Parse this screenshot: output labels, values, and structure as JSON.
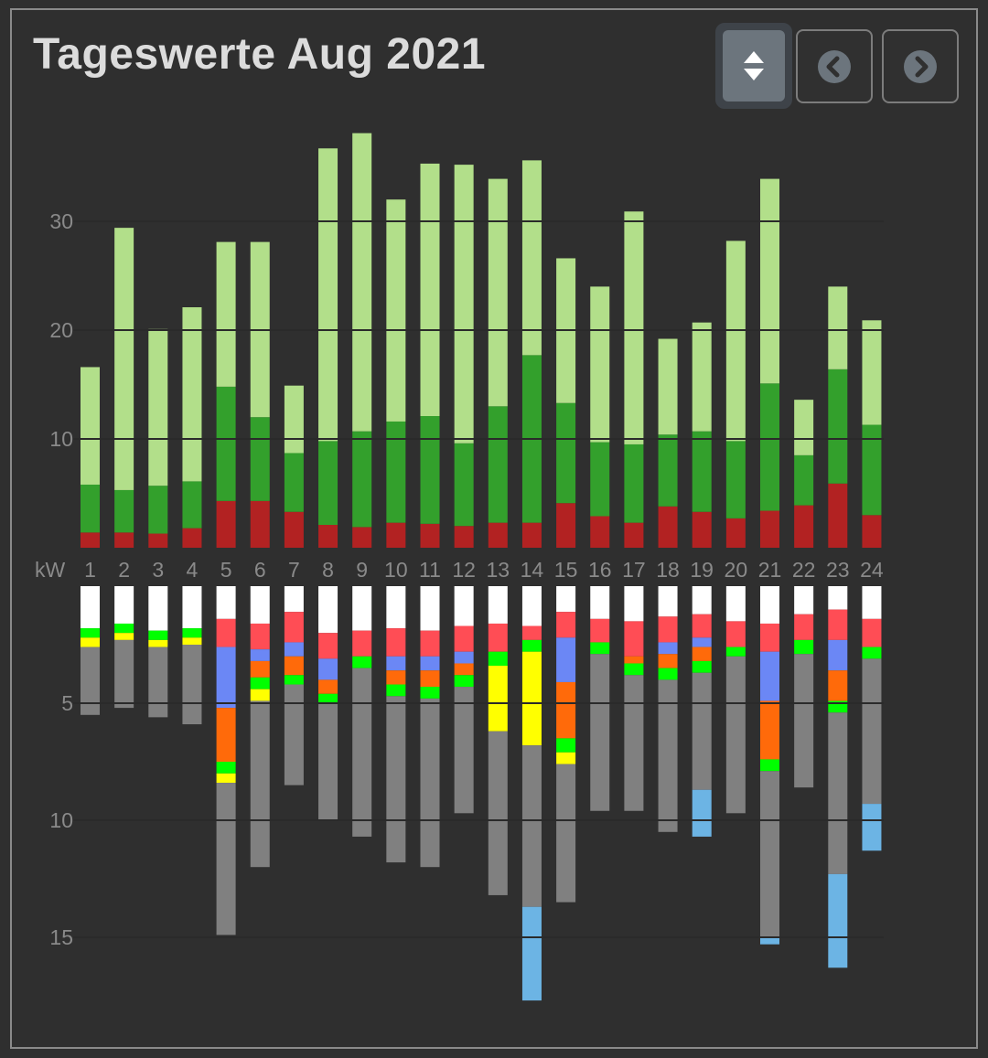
{
  "header": {
    "title": "Tageswerte Aug 2021"
  },
  "buttons": [
    {
      "name": "sort-toggle",
      "icon": "sort-up-down-icon"
    },
    {
      "name": "previous",
      "icon": "chevron-left-circle-icon"
    },
    {
      "name": "next",
      "icon": "chevron-right-circle-icon"
    }
  ],
  "chart_data": {
    "type": "bar",
    "unit_label": "kW",
    "categories": [
      "1",
      "2",
      "3",
      "4",
      "5",
      "6",
      "7",
      "8",
      "9",
      "10",
      "11",
      "12",
      "13",
      "14",
      "15",
      "16",
      "17",
      "18",
      "19",
      "20",
      "21",
      "22",
      "23",
      "24"
    ],
    "upper": {
      "ticks": [
        10,
        20,
        30
      ],
      "ylim": [
        0,
        38
      ],
      "colors": [
        "#b22222",
        "#33a02c",
        "#b2df8a"
      ],
      "segments": [
        [
          1.4,
          4.4,
          10.8
        ],
        [
          1.4,
          3.9,
          24.1
        ],
        [
          1.3,
          4.4,
          14.4
        ],
        [
          1.8,
          4.3,
          16.0
        ],
        [
          4.3,
          10.5,
          13.3
        ],
        [
          4.3,
          7.7,
          16.1
        ],
        [
          3.3,
          5.4,
          6.2
        ],
        [
          2.1,
          7.7,
          26.9
        ],
        [
          1.9,
          8.8,
          27.4
        ],
        [
          2.3,
          9.3,
          20.4
        ],
        [
          2.2,
          9.9,
          23.2
        ],
        [
          2.0,
          7.6,
          25.6
        ],
        [
          2.3,
          10.7,
          20.9
        ],
        [
          2.3,
          15.4,
          17.9
        ],
        [
          4.1,
          9.2,
          13.3
        ],
        [
          2.9,
          6.8,
          14.3
        ],
        [
          2.3,
          7.2,
          21.4
        ],
        [
          3.8,
          6.6,
          8.8
        ],
        [
          3.3,
          7.4,
          10.0
        ],
        [
          2.7,
          7.1,
          18.4
        ],
        [
          3.4,
          11.7,
          18.8
        ],
        [
          3.9,
          4.6,
          5.1
        ],
        [
          5.9,
          10.5,
          7.6
        ],
        [
          3.0,
          8.3,
          9.6
        ]
      ]
    },
    "lower": {
      "ticks": [
        5,
        10,
        15
      ],
      "ylim": [
        0,
        18.5
      ],
      "colors": [
        "#ffffff",
        "#ff4d55",
        "#6b87f5",
        "#ff6a0a",
        "#00ff00",
        "#ffff00",
        "#808080",
        "#6cb4e4"
      ],
      "segments": [
        [
          1.8,
          0.0,
          0.0,
          0.0,
          0.4,
          0.4,
          2.9,
          0.0
        ],
        [
          1.6,
          0.0,
          0.0,
          0.0,
          0.4,
          0.3,
          2.9,
          0.0
        ],
        [
          1.9,
          0.0,
          0.0,
          0.0,
          0.4,
          0.3,
          3.0,
          0.0
        ],
        [
          1.8,
          0.0,
          0.0,
          0.0,
          0.4,
          0.3,
          3.4,
          0.0
        ],
        [
          1.4,
          1.2,
          2.6,
          2.3,
          0.5,
          0.4,
          6.5,
          0.0
        ],
        [
          1.6,
          1.1,
          0.5,
          0.7,
          0.5,
          0.5,
          7.1,
          0.0
        ],
        [
          1.1,
          1.3,
          0.6,
          0.8,
          0.4,
          0.0,
          4.3,
          0.0
        ],
        [
          2.0,
          1.1,
          0.9,
          0.6,
          0.4,
          0.0,
          5.0,
          0.0
        ],
        [
          1.9,
          1.1,
          0.0,
          0.0,
          0.5,
          0.0,
          7.2,
          0.0
        ],
        [
          1.8,
          1.2,
          0.6,
          0.6,
          0.5,
          0.0,
          7.1,
          0.0
        ],
        [
          1.9,
          1.1,
          0.6,
          0.7,
          0.5,
          0.0,
          7.2,
          0.0
        ],
        [
          1.7,
          1.1,
          0.5,
          0.5,
          0.5,
          0.0,
          5.4,
          0.0
        ],
        [
          1.6,
          1.2,
          0.0,
          0.0,
          0.6,
          2.8,
          7.0,
          0.0
        ],
        [
          1.7,
          0.6,
          0.0,
          0.0,
          0.5,
          4.0,
          6.9,
          4.0
        ],
        [
          1.1,
          1.1,
          1.9,
          2.4,
          0.6,
          0.5,
          5.9,
          0.0
        ],
        [
          1.4,
          1.0,
          0.0,
          0.0,
          0.5,
          0.0,
          6.7,
          0.0
        ],
        [
          1.5,
          1.5,
          0.0,
          0.3,
          0.5,
          0.0,
          5.8,
          0.0
        ],
        [
          1.3,
          1.1,
          0.5,
          0.6,
          0.5,
          0.0,
          6.5,
          0.0
        ],
        [
          1.2,
          1.0,
          0.4,
          0.6,
          0.5,
          0.0,
          5.0,
          2.0
        ],
        [
          1.5,
          1.1,
          0.0,
          0.0,
          0.4,
          0.0,
          6.7,
          0.0
        ],
        [
          1.6,
          1.2,
          2.1,
          2.5,
          0.5,
          0.0,
          7.1,
          0.3
        ],
        [
          1.2,
          1.1,
          0.0,
          0.0,
          0.6,
          0.0,
          5.7,
          0.0
        ],
        [
          1.0,
          1.3,
          1.3,
          1.3,
          0.5,
          0.0,
          6.9,
          4.0
        ],
        [
          1.4,
          1.2,
          0.0,
          0.0,
          0.5,
          0.0,
          6.2,
          2.0
        ]
      ]
    }
  }
}
